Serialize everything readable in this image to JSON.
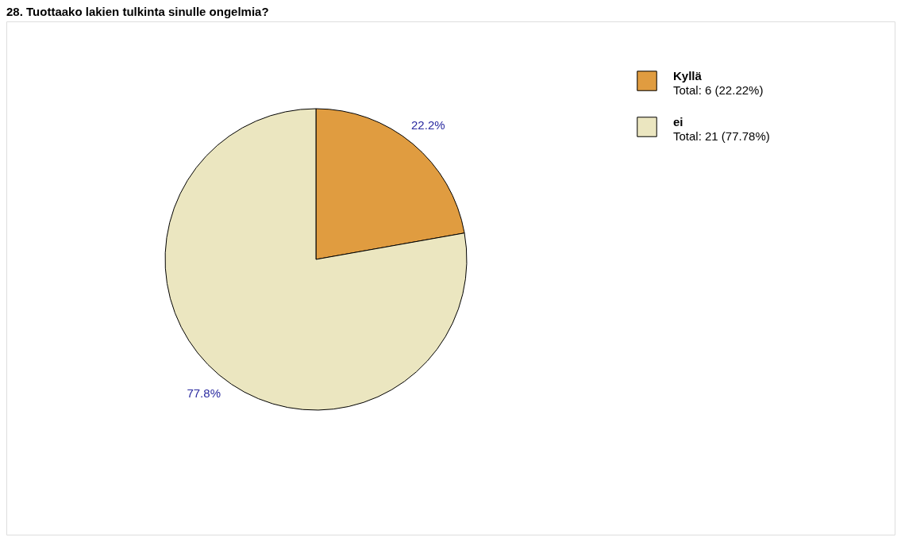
{
  "chart_data": {
    "type": "pie",
    "title": "28. Tuottaako lakien tulkinta sinulle ongelmia?",
    "categories": [
      "Kyllä",
      "ei"
    ],
    "values": [
      22.2,
      77.8
    ],
    "colors": [
      "#e09c40",
      "#ebe6c0"
    ],
    "value_labels": [
      "22.2%",
      "77.8%"
    ],
    "annotations": [
      "Total: 6 (22.22%)",
      "Total: 21 (77.78%)"
    ],
    "legend": "top right"
  }
}
